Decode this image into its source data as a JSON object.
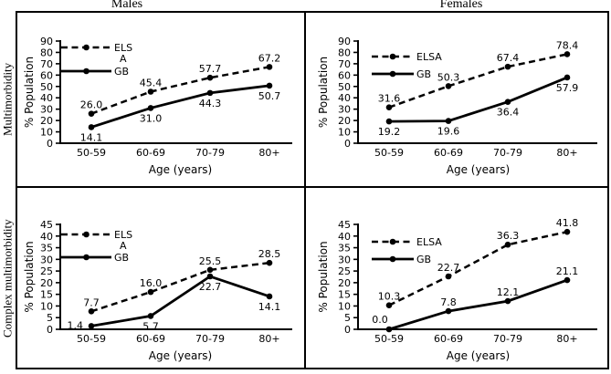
{
  "figure": {
    "background": "#ffffff",
    "ink": "#000000",
    "col_titles": [
      "Males",
      "Females"
    ],
    "row_titles": [
      "Multimorbidity",
      "Complex multimorbidity"
    ]
  },
  "chart_data": [
    {
      "type": "line",
      "id": "males-multimorbidity",
      "column": "Males",
      "row": "Multimorbidity",
      "categories": [
        "50-59",
        "60-69",
        "70-79",
        "80+"
      ],
      "xlabel": "Age (years)",
      "ylabel": "% Population",
      "ylim": [
        0,
        90
      ],
      "ytick_step": 10,
      "grid": false,
      "legend_position": "top-left",
      "series": [
        {
          "name": "ELSA",
          "legend_lines": [
            "ELS",
            "A"
          ],
          "line_style": "dashed",
          "marker": "circle",
          "color": "#000000",
          "values": [
            26.0,
            45.4,
            57.7,
            67.2
          ],
          "value_labels": [
            "26.0",
            "45.4",
            "57.7",
            "67.2"
          ]
        },
        {
          "name": "GB",
          "legend_lines": [
            "GB"
          ],
          "line_style": "solid",
          "marker": "circle",
          "color": "#000000",
          "values": [
            14.1,
            31.0,
            44.3,
            50.7
          ],
          "value_labels": [
            "14.1",
            "31.0",
            "44.3",
            "50.7"
          ]
        }
      ]
    },
    {
      "type": "line",
      "id": "females-multimorbidity",
      "column": "Females",
      "row": "Multimorbidity",
      "categories": [
        "50-59",
        "60-69",
        "70-79",
        "80+"
      ],
      "xlabel": "Age (years)",
      "ylabel": "% Population",
      "ylim": [
        0,
        90
      ],
      "ytick_step": 10,
      "grid": false,
      "legend_position": "top-left",
      "series": [
        {
          "name": "ELSA",
          "legend_lines": [
            "ELSA"
          ],
          "line_style": "dashed",
          "marker": "circle",
          "color": "#000000",
          "values": [
            31.6,
            50.3,
            67.4,
            78.4
          ],
          "value_labels": [
            "31.6",
            "50.3",
            "67.4",
            "78.4"
          ]
        },
        {
          "name": "GB",
          "legend_lines": [
            "GB"
          ],
          "line_style": "solid",
          "marker": "circle",
          "color": "#000000",
          "values": [
            19.2,
            19.6,
            36.4,
            57.9
          ],
          "value_labels": [
            "19.2",
            "19.6",
            "36.4",
            "57.9"
          ]
        }
      ]
    },
    {
      "type": "line",
      "id": "males-complex-multimorbidity",
      "column": "Males",
      "row": "Complex multimorbidity",
      "categories": [
        "50-59",
        "60-69",
        "70-79",
        "80+"
      ],
      "xlabel": "Age (years)",
      "ylabel": "% Population",
      "ylim": [
        0,
        45
      ],
      "ytick_step": 5,
      "grid": false,
      "legend_position": "top-left",
      "series": [
        {
          "name": "ELSA",
          "legend_lines": [
            "ELS",
            "A"
          ],
          "line_style": "dashed",
          "marker": "circle",
          "color": "#000000",
          "values": [
            7.7,
            16.0,
            25.5,
            28.5
          ],
          "value_labels": [
            "7.7",
            "16.0",
            "25.5",
            "28.5"
          ]
        },
        {
          "name": "GB",
          "legend_lines": [
            "GB"
          ],
          "line_style": "solid",
          "marker": "circle",
          "color": "#000000",
          "values": [
            1.4,
            5.7,
            22.7,
            14.1
          ],
          "value_labels": [
            "1.4",
            "5.7",
            "22.7",
            "14.1"
          ]
        }
      ]
    },
    {
      "type": "line",
      "id": "females-complex-multimorbidity",
      "column": "Females",
      "row": "Complex multimorbidity",
      "categories": [
        "50-59",
        "60-69",
        "70-79",
        "80+"
      ],
      "xlabel": "Age (years)",
      "ylabel": "% Population",
      "ylim": [
        0,
        45
      ],
      "ytick_step": 5,
      "grid": false,
      "legend_position": "top-left",
      "series": [
        {
          "name": "ELSA",
          "legend_lines": [
            "ELSA"
          ],
          "line_style": "dashed",
          "marker": "circle",
          "color": "#000000",
          "values": [
            10.3,
            22.7,
            36.3,
            41.8
          ],
          "value_labels": [
            "10.3",
            "22.7",
            "36.3",
            "41.8"
          ]
        },
        {
          "name": "GB",
          "legend_lines": [
            "GB"
          ],
          "line_style": "solid",
          "marker": "circle",
          "color": "#000000",
          "values": [
            0.0,
            7.8,
            12.1,
            21.1
          ],
          "value_labels": [
            "0.0",
            "7.8",
            "12.1",
            "21.1"
          ]
        }
      ]
    }
  ]
}
